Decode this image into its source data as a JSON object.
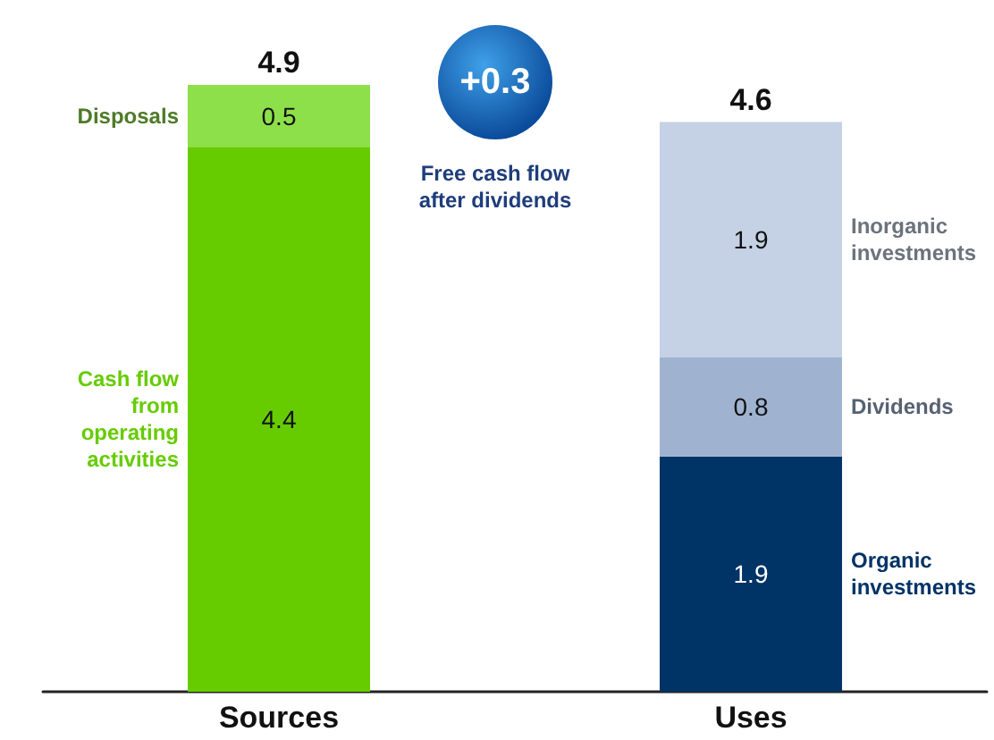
{
  "chart_data": {
    "type": "bar",
    "stacked": true,
    "categories": [
      "Sources",
      "Uses"
    ],
    "series": [
      {
        "name": "Cash flow\nfrom\noperating\nactivities",
        "color": "#66cc00",
        "values": [
          4.4,
          null
        ]
      },
      {
        "name": "Disposals",
        "color": "#8ee04a",
        "values": [
          0.5,
          null
        ]
      },
      {
        "name": "Organic\ninvestments",
        "color": "#003366",
        "values": [
          null,
          1.9
        ]
      },
      {
        "name": "Dividends",
        "color": "#9fb3d1",
        "values": [
          null,
          0.8
        ]
      },
      {
        "name": "Inorganic\ninvestments",
        "color": "#c5d1e4",
        "values": [
          null,
          1.9
        ]
      }
    ],
    "data_labels": true,
    "totals": [
      "4.9",
      "4.6"
    ],
    "legend": false,
    "annotations": [
      "+0.3",
      "Free cash flow\nafter dividends"
    ]
  }
}
